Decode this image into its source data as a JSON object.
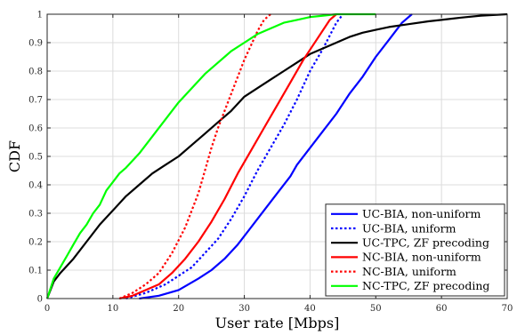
{
  "chart_data": {
    "type": "line",
    "title": "",
    "xlabel": "User rate [Mbps]",
    "ylabel": "CDF",
    "xlim": [
      0,
      70
    ],
    "ylim": [
      0,
      1
    ],
    "xticks": [
      0,
      10,
      20,
      30,
      40,
      50,
      60,
      70
    ],
    "yticks": [
      0,
      0.1,
      0.2,
      0.3,
      0.4,
      0.5,
      0.6,
      0.7,
      0.8,
      0.9,
      1
    ],
    "grid": true,
    "legend_position": "bottom-right",
    "series": [
      {
        "name": "UC-BIA, non-uniform",
        "color": "#0000ff",
        "style": "solid",
        "x": [
          14,
          17,
          20,
          23,
          25,
          27,
          29,
          31,
          33,
          35,
          37,
          38,
          40,
          42,
          44,
          46,
          48,
          50,
          52,
          54,
          55.5
        ],
        "y": [
          0,
          0.01,
          0.03,
          0.07,
          0.1,
          0.14,
          0.19,
          0.25,
          0.31,
          0.37,
          0.43,
          0.47,
          0.53,
          0.59,
          0.65,
          0.72,
          0.78,
          0.85,
          0.91,
          0.97,
          1.0
        ]
      },
      {
        "name": "UC-BIA, uniform",
        "color": "#0000ff",
        "style": "dotted",
        "x": [
          12,
          15,
          18,
          20,
          22,
          24,
          26,
          28,
          30,
          32,
          34,
          36,
          38,
          40,
          42,
          44,
          45
        ],
        "y": [
          0,
          0.02,
          0.05,
          0.08,
          0.11,
          0.16,
          0.21,
          0.28,
          0.36,
          0.45,
          0.53,
          0.61,
          0.7,
          0.8,
          0.88,
          0.97,
          1.0
        ]
      },
      {
        "name": "UC-TPC, ZF precoding",
        "color": "#000000",
        "style": "solid",
        "x": [
          0,
          1,
          2,
          4,
          6,
          8,
          10,
          12,
          14,
          16,
          18,
          20,
          22,
          24,
          26,
          28,
          30,
          32,
          34,
          36,
          38,
          40,
          42,
          44,
          46,
          48,
          50,
          52,
          55,
          58,
          60,
          63,
          66,
          70
        ],
        "y": [
          0,
          0.06,
          0.09,
          0.14,
          0.2,
          0.26,
          0.31,
          0.36,
          0.4,
          0.44,
          0.47,
          0.5,
          0.54,
          0.58,
          0.62,
          0.66,
          0.71,
          0.74,
          0.77,
          0.8,
          0.83,
          0.86,
          0.88,
          0.9,
          0.92,
          0.935,
          0.945,
          0.955,
          0.965,
          0.975,
          0.98,
          0.988,
          0.995,
          1.0
        ]
      },
      {
        "name": "NC-BIA, non-uniform",
        "color": "#ff0000",
        "style": "solid",
        "x": [
          11,
          13,
          15,
          17,
          19,
          21,
          23,
          25,
          27,
          29,
          31,
          33,
          35,
          37,
          39,
          41,
          43,
          44
        ],
        "y": [
          0,
          0.01,
          0.03,
          0.05,
          0.09,
          0.14,
          0.2,
          0.27,
          0.35,
          0.44,
          0.52,
          0.6,
          0.68,
          0.76,
          0.84,
          0.91,
          0.98,
          1.0
        ]
      },
      {
        "name": "NC-BIA, uniform",
        "color": "#ff0000",
        "style": "dotted",
        "x": [
          11,
          13,
          15,
          17,
          19,
          21,
          23,
          24,
          25,
          26,
          27,
          28,
          29,
          30,
          31,
          32,
          33,
          34
        ],
        "y": [
          0,
          0.02,
          0.05,
          0.09,
          0.16,
          0.25,
          0.37,
          0.45,
          0.53,
          0.6,
          0.66,
          0.72,
          0.78,
          0.84,
          0.89,
          0.94,
          0.98,
          1.0
        ]
      },
      {
        "name": "NC-TPC, ZF precoding",
        "color": "#00ff00",
        "style": "solid",
        "x": [
          0,
          1,
          2,
          3,
          4,
          5,
          6,
          7,
          8,
          9,
          10,
          11,
          12,
          14,
          16,
          18,
          20,
          22,
          24,
          26,
          28,
          30,
          32,
          34,
          36,
          38,
          40,
          42,
          44,
          46,
          48,
          50
        ],
        "y": [
          0,
          0.07,
          0.11,
          0.15,
          0.19,
          0.23,
          0.26,
          0.3,
          0.33,
          0.38,
          0.41,
          0.44,
          0.46,
          0.51,
          0.57,
          0.63,
          0.69,
          0.74,
          0.79,
          0.83,
          0.87,
          0.9,
          0.93,
          0.95,
          0.97,
          0.98,
          0.99,
          0.995,
          1.0,
          1.0,
          1.0,
          1.0
        ]
      }
    ]
  }
}
